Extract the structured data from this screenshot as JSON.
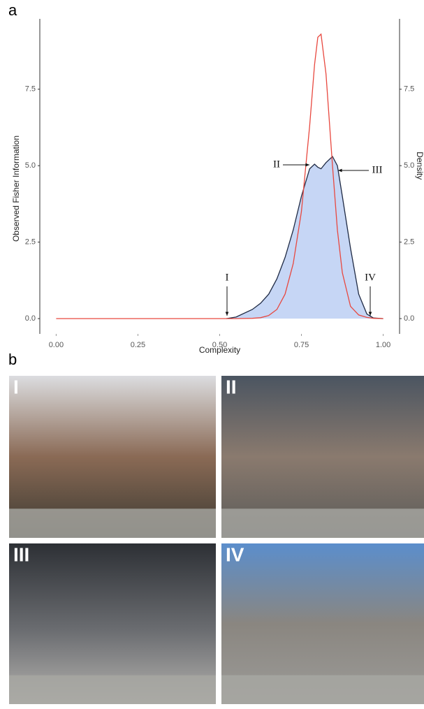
{
  "panel_a": "a",
  "panel_b": "b",
  "chart_data": {
    "type": "line",
    "xlabel": "Complexity",
    "ylabel": "Observed Fisher Information",
    "y2label": "Density",
    "x": [
      0,
      0.1,
      0.2,
      0.3,
      0.4,
      0.5,
      0.52,
      0.55,
      0.6,
      0.625,
      0.65,
      0.675,
      0.7,
      0.725,
      0.75,
      0.775,
      0.79,
      0.8,
      0.81,
      0.825,
      0.845,
      0.86,
      0.875,
      0.9,
      0.925,
      0.95,
      0.97,
      1.0
    ],
    "series": [
      {
        "name": "Observed Fisher Information",
        "color": "#e8483f",
        "values": [
          0,
          0,
          0,
          0,
          0,
          0,
          0,
          0,
          0.01,
          0.03,
          0.1,
          0.3,
          0.8,
          1.8,
          3.5,
          6.3,
          8.3,
          9.2,
          9.3,
          8.0,
          5.0,
          2.9,
          1.5,
          0.4,
          0.12,
          0.04,
          0.01,
          0
        ]
      },
      {
        "name": "Density",
        "color": "#1f2a44",
        "fill": "#c6d6f5",
        "axis": "y2",
        "values": [
          null,
          null,
          null,
          null,
          null,
          null,
          0,
          0.05,
          0.3,
          0.5,
          0.8,
          1.3,
          2.0,
          2.9,
          4.0,
          4.9,
          5.05,
          4.95,
          4.9,
          5.1,
          5.3,
          5.0,
          4.0,
          2.3,
          0.8,
          0.15,
          0.02,
          0
        ]
      }
    ],
    "xlim": [
      -0.05,
      1.05
    ],
    "ylim": [
      -0.5,
      9.8
    ],
    "y2lim": [
      -0.5,
      9.8
    ],
    "xticks": [
      {
        "value": 0,
        "label": "0.00"
      },
      {
        "value": 0.25,
        "label": "0.25"
      },
      {
        "value": 0.5,
        "label": "0.50"
      },
      {
        "value": 0.75,
        "label": "0.75"
      },
      {
        "value": 1,
        "label": "1.00"
      }
    ],
    "yticks": [
      {
        "value": 0,
        "label": "0.0"
      },
      {
        "value": 2.5,
        "label": "2.5"
      },
      {
        "value": 5,
        "label": "5.0"
      },
      {
        "value": 7.5,
        "label": "7.5"
      }
    ],
    "y2ticks": [
      {
        "value": 0,
        "label": "0.0"
      },
      {
        "value": 2.5,
        "label": "2.5"
      },
      {
        "value": 5,
        "label": "5.0"
      },
      {
        "value": 7.5,
        "label": "7.5"
      }
    ],
    "annotations": [
      "I",
      "II",
      "III",
      "IV"
    ]
  },
  "photos": [
    {
      "label": "I"
    },
    {
      "label": "II"
    },
    {
      "label": "III"
    },
    {
      "label": "IV"
    }
  ]
}
